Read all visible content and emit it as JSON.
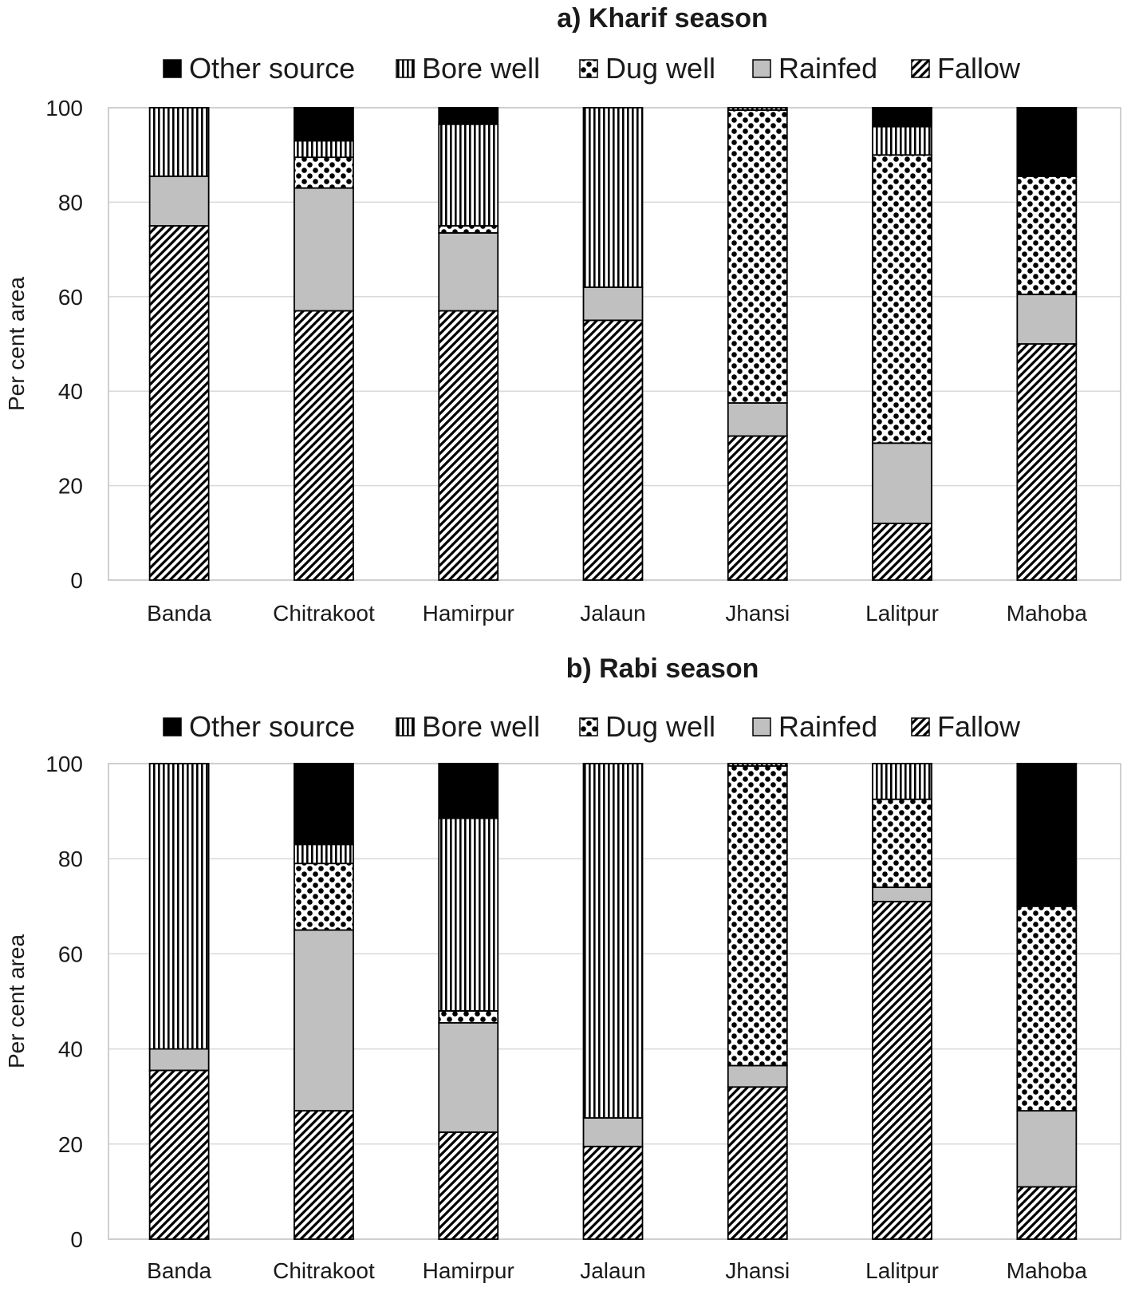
{
  "chart_data": [
    {
      "id": "kharif",
      "type": "bar",
      "stacked": true,
      "title": "a) Kharif season",
      "xlabel": "",
      "ylabel": "Per cent area",
      "ylim": [
        0,
        100
      ],
      "yticks": [
        0,
        20,
        40,
        60,
        80,
        100
      ],
      "grid": true,
      "legend_position": "top",
      "categories": [
        "Banda",
        "Chitrakoot",
        "Hamirpur",
        "Jalaun",
        "Jhansi",
        "Lalitpur",
        "Mahoba"
      ],
      "series": [
        {
          "name": "Fallow",
          "pattern": "diagonal",
          "values": [
            75,
            57,
            57,
            55,
            30.5,
            12,
            50
          ]
        },
        {
          "name": "Rainfed",
          "pattern": "gray",
          "values": [
            10.5,
            26,
            16.5,
            7,
            7,
            17,
            10.5
          ]
        },
        {
          "name": "Dug well",
          "pattern": "dots",
          "values": [
            0,
            6.5,
            1.5,
            0,
            62,
            61,
            25
          ]
        },
        {
          "name": "Bore well",
          "pattern": "vertical",
          "values": [
            14.5,
            3.5,
            21.5,
            38,
            0.5,
            6,
            0
          ]
        },
        {
          "name": "Other source",
          "pattern": "black",
          "values": [
            0,
            7,
            3.5,
            0,
            0,
            4,
            14.5
          ]
        }
      ]
    },
    {
      "id": "rabi",
      "type": "bar",
      "stacked": true,
      "title": "b) Rabi season",
      "xlabel": "",
      "ylabel": "Per cent area",
      "ylim": [
        0,
        100
      ],
      "yticks": [
        0,
        20,
        40,
        60,
        80,
        100
      ],
      "grid": true,
      "legend_position": "top",
      "categories": [
        "Banda",
        "Chitrakoot",
        "Hamirpur",
        "Jalaun",
        "Jhansi",
        "Lalitpur",
        "Mahoba"
      ],
      "series": [
        {
          "name": "Fallow",
          "pattern": "diagonal",
          "values": [
            35.5,
            27,
            22.5,
            19.5,
            32,
            71,
            11
          ]
        },
        {
          "name": "Rainfed",
          "pattern": "gray",
          "values": [
            4.5,
            38,
            23,
            6,
            4.5,
            3,
            16
          ]
        },
        {
          "name": "Dug well",
          "pattern": "dots",
          "values": [
            0,
            14,
            2.5,
            0,
            63,
            18.5,
            43
          ]
        },
        {
          "name": "Bore well",
          "pattern": "vertical",
          "values": [
            60,
            4,
            40.5,
            74.5,
            0.5,
            7.5,
            0
          ]
        },
        {
          "name": "Other source",
          "pattern": "black",
          "values": [
            0,
            17,
            11.5,
            0,
            0,
            0,
            30
          ]
        }
      ]
    }
  ],
  "legend_order": [
    "Other source",
    "Bore well",
    "Dug well",
    "Rainfed",
    "Fallow"
  ]
}
